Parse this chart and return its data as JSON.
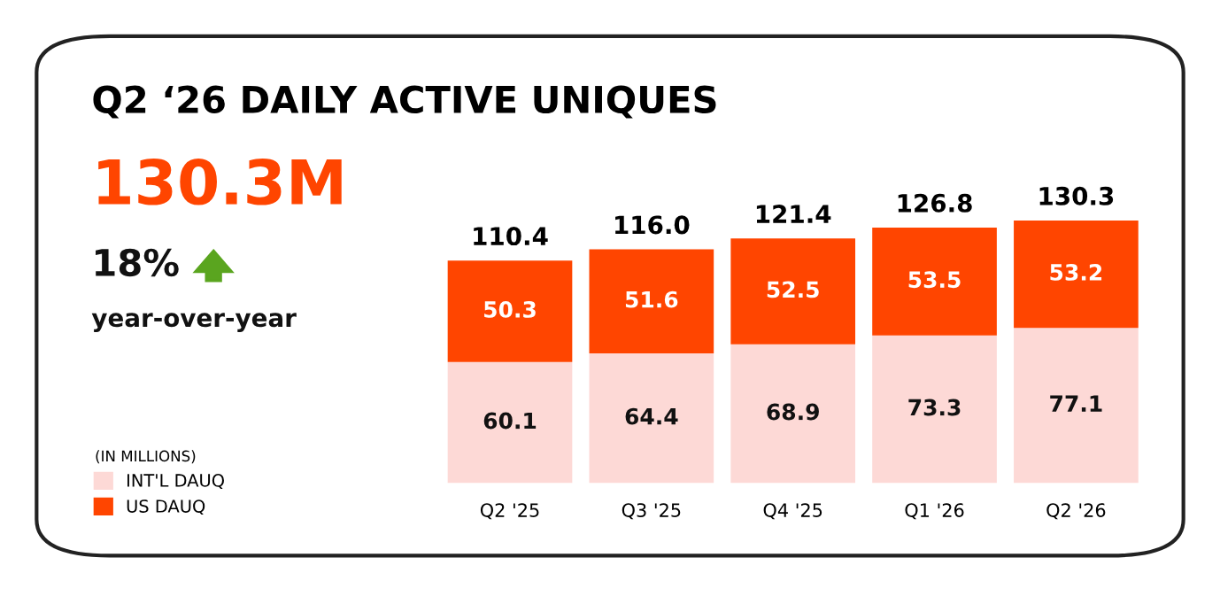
{
  "chart_data": {
    "type": "bar",
    "stacked": true,
    "title": "Q2 ‘26 DAILY ACTIVE UNIQUES",
    "categories": [
      "Q2 '25",
      "Q3 '25",
      "Q4 '25",
      "Q1 '26",
      "Q2 '26"
    ],
    "series": [
      {
        "name": "INT'L DAUQ",
        "color": "#fdd9d6",
        "values": [
          60.1,
          64.4,
          68.9,
          73.3,
          77.1
        ]
      },
      {
        "name": "US DAUQ",
        "color": "#ff4500",
        "values": [
          50.3,
          51.6,
          52.5,
          53.5,
          53.2
        ]
      }
    ],
    "totals": [
      "110.4",
      "116.0",
      "121.4",
      "126.8",
      "130.3"
    ],
    "data_labels": true,
    "legend": "left",
    "legend_title": "(IN MILLIONS)",
    "annotations": [
      "130.3M",
      "18%",
      "year-over-year"
    ]
  }
}
